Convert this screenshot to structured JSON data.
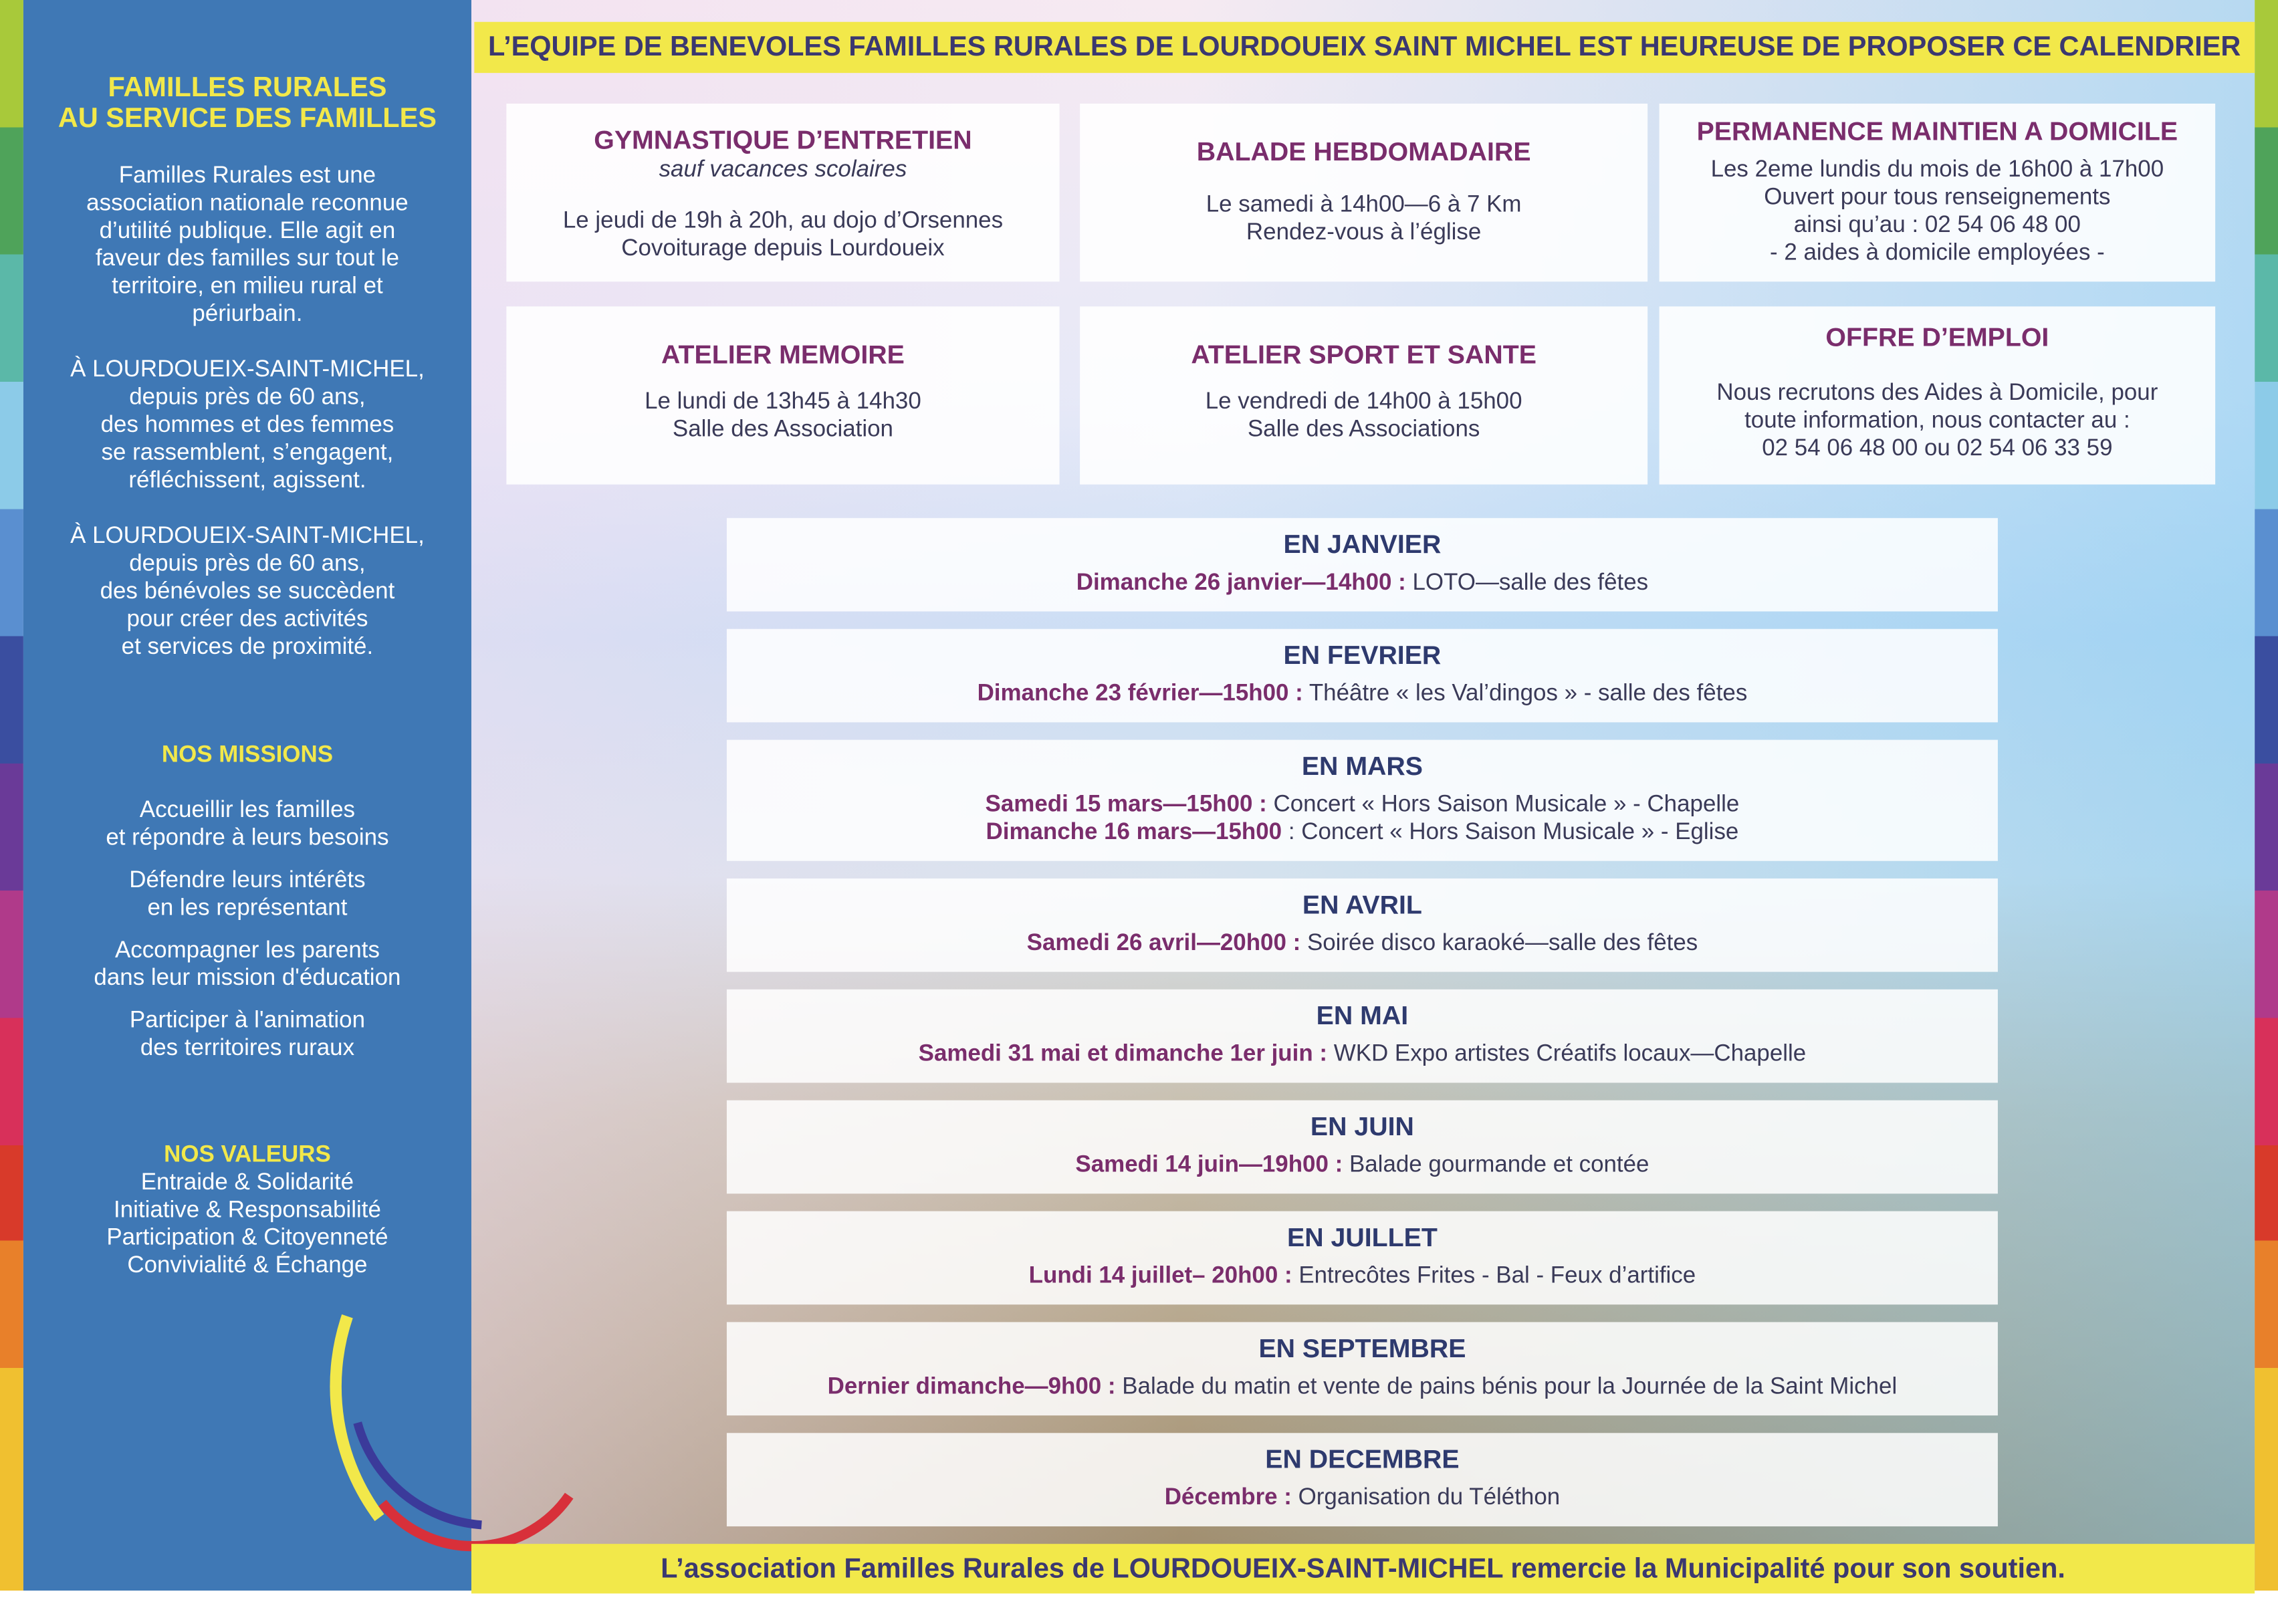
{
  "sidebar": {
    "title": [
      "FAMILLES RURALES",
      "AU SERVICE DES FAMILLES"
    ],
    "paragraphs": [
      [
        "Familles Rurales est une",
        "association nationale reconnue",
        "d’utilité publique.  Elle agit en",
        "faveur des familles sur tout le",
        "territoire, en milieu rural et",
        "périurbain."
      ],
      [
        "À LOURDOUEIX-SAINT-MICHEL,",
        "depuis près de 60 ans,",
        "des hommes et des femmes",
        "se rassemblent, s’engagent,",
        "réfléchissent, agissent."
      ],
      [
        "À LOURDOUEIX-SAINT-MICHEL,",
        "depuis près de 60 ans,",
        "des bénévoles se succèdent",
        "pour créer des activités",
        "et services de proximité."
      ]
    ],
    "missions_heading": "NOS MISSIONS",
    "missions": [
      [
        "Accueillir les familles",
        "et répondre à leurs besoins"
      ],
      [
        "Défendre leurs intérêts",
        "en les représentant"
      ],
      [
        "Accompagner les parents",
        "dans leur mission d'éducation"
      ],
      [
        "Participer à l'animation",
        "des territoires ruraux"
      ]
    ],
    "values_heading": "NOS VALEURS",
    "values": [
      "Entraide & Solidarité",
      "Initiative & Responsabilité",
      "Participation & Citoyenneté",
      "Convivialité & Échange"
    ]
  },
  "header": {
    "title": "L’EQUIPE DE BENEVOLES FAMILLES RURALES DE LOURDOUEIX SAINT MICHEL EST HEUREUSE DE PROPOSER CE CALENDRIER"
  },
  "activities": [
    {
      "title": "GYMNASTIQUE D’ENTRETIEN",
      "subtitle": "sauf vacances scolaires",
      "lines": [
        "Le jeudi de 19h à 20h, au dojo d’Orsennes",
        "Covoiturage depuis Lourdoueix"
      ]
    },
    {
      "title": "BALADE HEBDOMADAIRE",
      "lines": [
        "Le samedi à 14h00—6 à 7 Km",
        "Rendez-vous à l’église"
      ]
    },
    {
      "title": "PERMANENCE MAINTIEN A DOMICILE",
      "lines": [
        "Les 2eme lundis du mois de 16h00 à 17h00",
        "Ouvert pour tous renseignements",
        "ainsi qu’au : 02 54 06 48 00",
        "- 2 aides à domicile employées -"
      ]
    },
    {
      "title": "ATELIER MEMOIRE",
      "lines": [
        "Le lundi de 13h45 à 14h30",
        "Salle des Association"
      ]
    },
    {
      "title": "ATELIER SPORT ET SANTE",
      "lines": [
        "Le vendredi de 14h00 à 15h00",
        "Salle des Associations"
      ]
    },
    {
      "title": "OFFRE D’EMPLOI",
      "lines": [
        "Nous recrutons des Aides à Domicile, pour",
        "toute information, nous contacter au :",
        "02 54 06 48 00 ou 02 54 06 33 59"
      ]
    }
  ],
  "events": [
    {
      "month": "EN JANVIER",
      "entries": [
        {
          "when": "Dimanche 26 janvier—14h00 :",
          "what": "LOTO—salle des fêtes"
        }
      ]
    },
    {
      "month": "EN FEVRIER",
      "entries": [
        {
          "when": "Dimanche 23 février—15h00 :",
          "what": "Théâtre « les Val’dingos » - salle des fêtes"
        }
      ]
    },
    {
      "month": "EN MARS",
      "entries": [
        {
          "when": "Samedi 15 mars—15h00 :",
          "what": "Concert « Hors Saison Musicale » - Chapelle"
        },
        {
          "when": "Dimanche 16 mars—15h00",
          "what": ": Concert « Hors Saison Musicale » - Eglise"
        }
      ]
    },
    {
      "month": "EN AVRIL",
      "entries": [
        {
          "when": "Samedi 26 avril—20h00 :",
          "what": "Soirée disco karaoké—salle des fêtes"
        }
      ]
    },
    {
      "month": "EN MAI",
      "entries": [
        {
          "when": "Samedi 31 mai et dimanche 1er juin :",
          "what": "WKD Expo artistes Créatifs locaux—Chapelle"
        }
      ]
    },
    {
      "month": "EN JUIN",
      "entries": [
        {
          "when": "Samedi 14 juin—19h00 :",
          "what": "Balade gourmande et contée"
        }
      ]
    },
    {
      "month": "EN JUILLET",
      "entries": [
        {
          "when": "Lundi 14 juillet– 20h00 :",
          "what": "Entrecôtes Frites -  Bal  - Feux d’artifice"
        }
      ]
    },
    {
      "month": "EN SEPTEMBRE",
      "entries": [
        {
          "when": "Dernier dimanche—9h00 :",
          "what": "Balade du matin et vente de pains bénis pour la Journée de la Saint Michel"
        }
      ]
    },
    {
      "month": "EN DECEMBRE",
      "entries": [
        {
          "when": "Décembre :",
          "what": "Organisation du Téléthon"
        }
      ]
    }
  ],
  "footer": {
    "text": "L’association Familles Rurales de LOURDOUEIX-SAINT-MICHEL remercie la Municipalité pour son soutien."
  }
}
